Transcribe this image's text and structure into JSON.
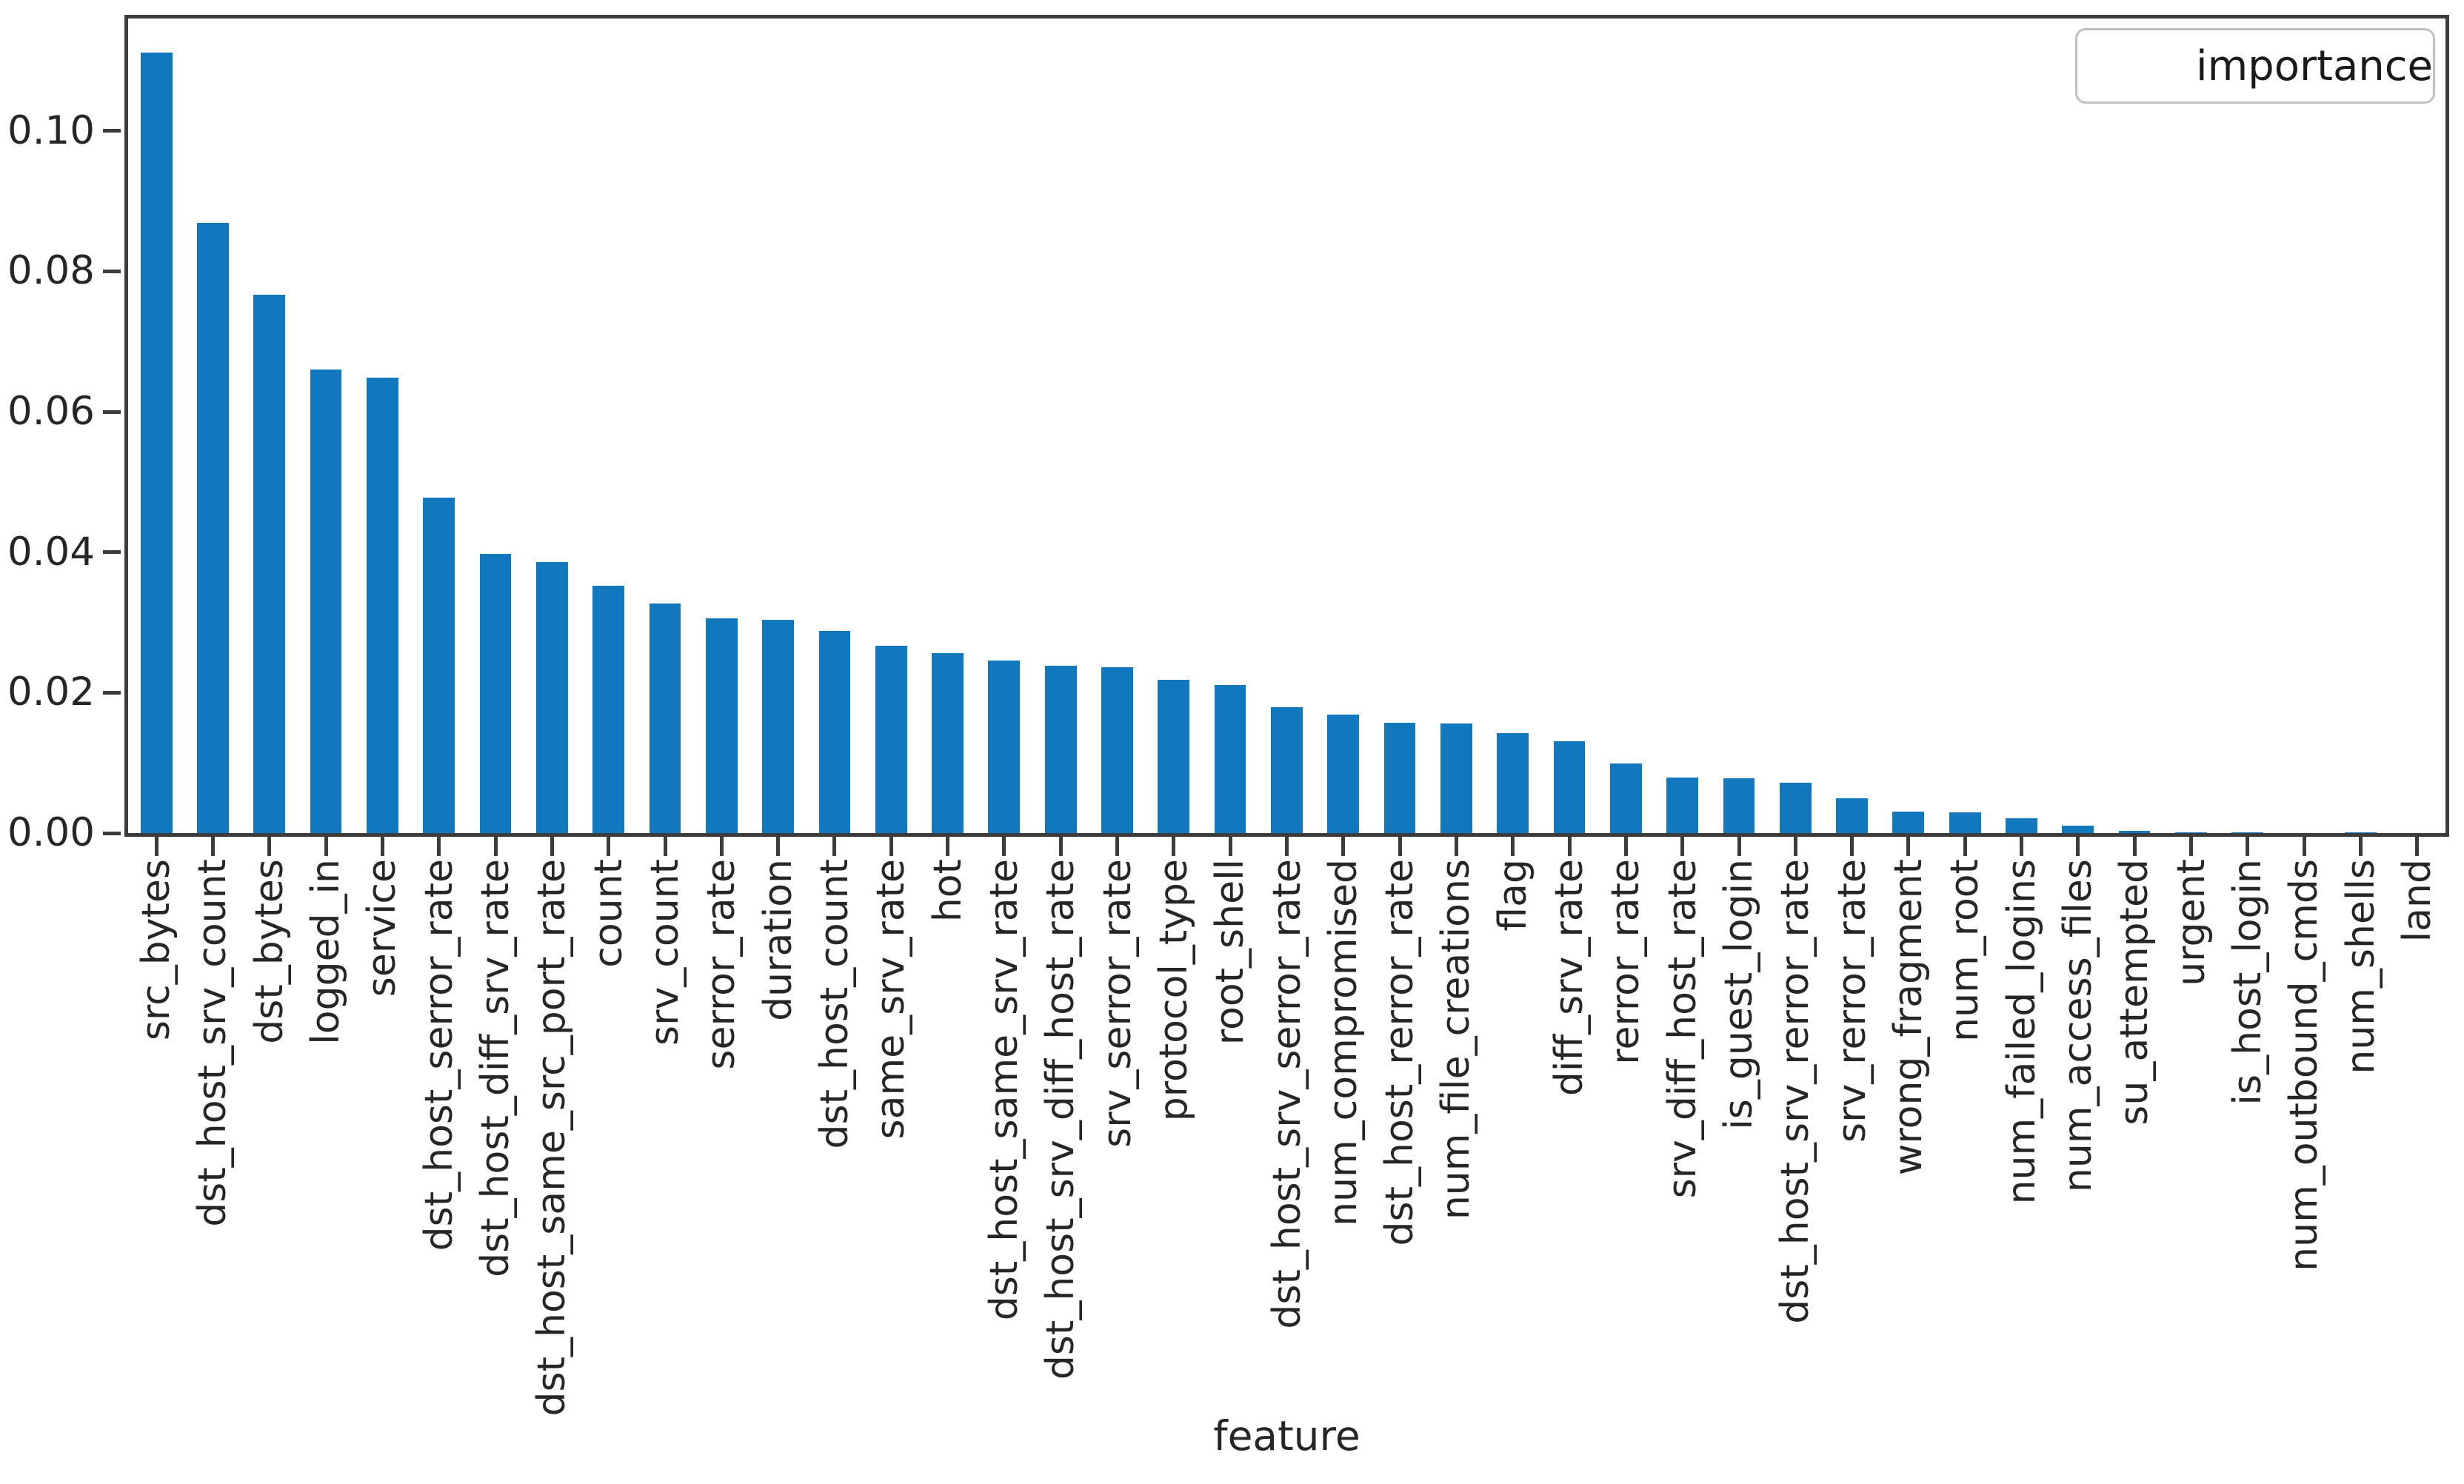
{
  "chart_data": {
    "type": "bar",
    "title": "",
    "xlabel": "feature",
    "ylabel": "",
    "grid": false,
    "legend_position": "upper-right",
    "bar_color": "#1278be",
    "axis_color": "#3b3b3b",
    "text_color": "#262626",
    "ylim": [
      0,
      0.116
    ],
    "yticks": [
      0,
      0.02,
      0.04,
      0.06,
      0.08,
      0.1
    ],
    "ytick_labels": [
      "0.00",
      "0.02",
      "0.04",
      "0.06",
      "0.08",
      "0.10"
    ],
    "categories": [
      "src_bytes",
      "dst_host_srv_count",
      "dst_bytes",
      "logged_in",
      "service",
      "dst_host_serror_rate",
      "dst_host_diff_srv_rate",
      "dst_host_same_src_port_rate",
      "count",
      "srv_count",
      "serror_rate",
      "duration",
      "dst_host_count",
      "same_srv_rate",
      "hot",
      "dst_host_same_srv_rate",
      "dst_host_srv_diff_host_rate",
      "srv_serror_rate",
      "protocol_type",
      "root_shell",
      "dst_host_srv_serror_rate",
      "num_compromised",
      "dst_host_rerror_rate",
      "num_file_creations",
      "flag",
      "diff_srv_rate",
      "rerror_rate",
      "srv_diff_host_rate",
      "is_guest_login",
      "dst_host_srv_rerror_rate",
      "srv_rerror_rate",
      "wrong_fragment",
      "num_root",
      "num_failed_logins",
      "num_access_files",
      "su_attempted",
      "urgent",
      "is_host_login",
      "num_outbound_cmds",
      "num_shells",
      "land"
    ],
    "series": [
      {
        "name": "importance",
        "values": [
          0.1112,
          0.0869,
          0.0767,
          0.066,
          0.0649,
          0.0478,
          0.0398,
          0.0386,
          0.0352,
          0.0327,
          0.0306,
          0.0304,
          0.0288,
          0.0267,
          0.0256,
          0.0246,
          0.0238,
          0.0236,
          0.0218,
          0.0211,
          0.0179,
          0.0169,
          0.0157,
          0.0156,
          0.0142,
          0.0131,
          0.0099,
          0.0079,
          0.0078,
          0.0072,
          0.005,
          0.0031,
          0.003,
          0.0021,
          0.0011,
          0.0003,
          0.0001,
          0.0001,
          0.0,
          0.0001,
          0.0
        ]
      }
    ]
  }
}
